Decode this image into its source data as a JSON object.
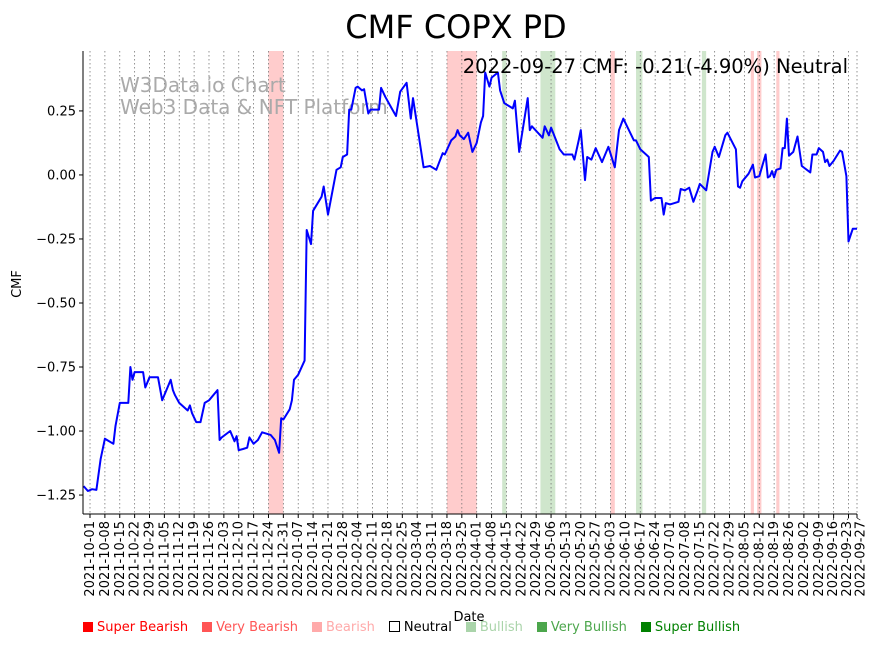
{
  "chart_data": {
    "type": "line",
    "title": "CMF COPX PD",
    "xlabel": "Date",
    "ylabel": "CMF",
    "annotation": "2022-09-27 CMF: -0.21(-4.90%) Neutral",
    "watermark": [
      "W3Data.io Chart",
      "Web3 Data & NFT Platform"
    ],
    "x_origin_date": "2021-10-01",
    "x_unit": "days since origin",
    "xlim": [
      -3.3,
      361
    ],
    "ylim": [
      -1.324,
      0.484
    ],
    "yticks": [
      0.25,
      0.0,
      -0.25,
      -0.5,
      -0.75,
      -1.0,
      -1.25
    ],
    "ytick_labels": [
      "0.25",
      "0.00",
      "−0.25",
      "−0.50",
      "−0.75",
      "−1.00",
      "−1.25"
    ],
    "xtick_labels": [
      "2021-10-01",
      "2021-10-08",
      "2021-10-15",
      "2021-10-22",
      "2021-10-29",
      "2021-11-05",
      "2021-11-12",
      "2021-11-19",
      "2021-11-26",
      "2021-12-03",
      "2021-12-10",
      "2021-12-17",
      "2021-12-24",
      "2021-12-31",
      "2022-01-07",
      "2022-01-14",
      "2022-01-21",
      "2022-01-28",
      "2022-02-04",
      "2022-02-11",
      "2022-02-18",
      "2022-02-25",
      "2022-03-04",
      "2022-03-11",
      "2022-03-18",
      "2022-03-25",
      "2022-04-01",
      "2022-04-08",
      "2022-04-15",
      "2022-04-22",
      "2022-04-29",
      "2022-05-06",
      "2022-05-13",
      "2022-05-20",
      "2022-05-27",
      "2022-06-03",
      "2022-06-10",
      "2022-06-17",
      "2022-06-24",
      "2022-07-01",
      "2022-07-08",
      "2022-07-15",
      "2022-07-22",
      "2022-07-29",
      "2022-08-05",
      "2022-08-12",
      "2022-08-19",
      "2022-08-26",
      "2022-09-02",
      "2022-09-09",
      "2022-09-16",
      "2022-09-23",
      "2022-09-27"
    ],
    "grid": "vertical dotted",
    "line_color": "#0000ff",
    "series": [
      {
        "name": "CMF",
        "days": [
          -3,
          -1,
          1,
          3,
          5,
          7,
          8,
          11,
          12,
          14,
          18,
          19,
          20,
          21,
          25,
          26,
          28,
          32,
          34,
          38,
          39,
          40,
          42,
          46,
          47,
          48,
          50,
          52,
          54,
          56,
          60,
          61,
          62,
          66,
          68,
          69,
          70,
          72,
          74,
          75,
          77,
          79,
          81,
          85,
          87,
          89,
          90,
          91,
          94,
          95,
          96,
          98,
          101,
          102,
          104,
          105,
          109,
          110,
          112,
          116,
          118,
          119,
          121,
          122,
          123,
          125,
          126,
          128,
          129,
          131,
          132,
          136,
          137,
          139,
          142,
          144,
          146,
          149,
          151,
          152,
          157,
          160,
          163,
          166,
          167,
          170,
          172,
          173,
          174,
          176,
          178,
          180,
          182,
          184,
          185,
          186,
          188,
          189,
          192,
          193,
          195,
          199,
          200,
          202,
          206,
          207,
          208,
          213,
          214,
          216,
          217,
          221,
          223,
          227,
          228,
          230,
          231,
          233,
          234,
          236,
          238,
          241,
          244,
          247,
          249,
          251,
          256,
          257,
          259,
          263,
          264,
          266,
          269,
          270,
          271,
          273,
          277,
          278,
          280,
          282,
          284,
          286,
          287,
          290,
          291,
          293,
          294,
          296,
          299,
          300,
          304,
          305,
          306,
          307,
          310,
          312,
          313,
          315,
          318,
          319,
          320,
          321,
          322,
          323,
          325,
          326,
          327,
          328,
          329,
          331,
          333,
          335,
          339,
          340,
          342,
          343,
          345,
          346,
          347,
          348,
          350,
          353,
          354,
          356,
          357,
          359,
          361
        ],
        "values": [
          -1.215,
          -1.234,
          -1.227,
          -1.23,
          -1.11,
          -1.03,
          -1.035,
          -1.05,
          -0.98,
          -0.89,
          -0.89,
          -0.75,
          -0.8,
          -0.77,
          -0.77,
          -0.83,
          -0.79,
          -0.79,
          -0.88,
          -0.8,
          -0.84,
          -0.86,
          -0.89,
          -0.92,
          -0.9,
          -0.93,
          -0.965,
          -0.965,
          -0.89,
          -0.88,
          -0.84,
          -1.035,
          -1.025,
          -1.0,
          -1.04,
          -1.02,
          -1.075,
          -1.07,
          -1.065,
          -1.025,
          -1.05,
          -1.035,
          -1.005,
          -1.015,
          -1.035,
          -1.085,
          -0.95,
          -0.955,
          -0.915,
          -0.88,
          -0.8,
          -0.78,
          -0.725,
          -0.215,
          -0.27,
          -0.14,
          -0.085,
          -0.045,
          -0.155,
          0.02,
          0.03,
          0.07,
          0.08,
          0.255,
          0.255,
          0.34,
          0.345,
          0.33,
          0.335,
          0.24,
          0.255,
          0.255,
          0.34,
          0.305,
          0.26,
          0.23,
          0.325,
          0.36,
          0.22,
          0.3,
          0.03,
          0.035,
          0.02,
          0.085,
          0.08,
          0.135,
          0.15,
          0.175,
          0.155,
          0.14,
          0.165,
          0.09,
          0.125,
          0.205,
          0.23,
          0.4,
          0.345,
          0.38,
          0.4,
          0.33,
          0.28,
          0.26,
          0.29,
          0.09,
          0.3,
          0.175,
          0.19,
          0.145,
          0.19,
          0.155,
          0.185,
          0.1,
          0.08,
          0.08,
          0.06,
          0.135,
          0.175,
          -0.02,
          0.07,
          0.06,
          0.105,
          0.05,
          0.11,
          0.03,
          0.175,
          0.22,
          0.135,
          0.135,
          0.1,
          0.07,
          -0.1,
          -0.09,
          -0.09,
          -0.155,
          -0.11,
          -0.115,
          -0.105,
          -0.055,
          -0.06,
          -0.05,
          -0.105,
          -0.06,
          -0.035,
          -0.06,
          -0.01,
          0.09,
          0.11,
          0.07,
          0.155,
          0.165,
          0.1,
          -0.045,
          -0.05,
          -0.025,
          0.005,
          0.04,
          -0.01,
          -0.005,
          0.08,
          -0.01,
          -0.005,
          0.015,
          -0.01,
          0.02,
          0.025,
          0.105,
          0.105,
          0.22,
          0.075,
          0.09,
          0.15,
          0.035,
          0.01,
          0.08,
          0.08,
          0.105,
          0.09,
          0.05,
          0.06,
          0.035,
          0.055,
          0.095,
          0.09,
          -0.005,
          -0.26,
          -0.21,
          -0.21
        ]
      }
    ],
    "regions": [
      {
        "type": "Very Bearish",
        "start": 84,
        "end": 91
      },
      {
        "type": "Very Bearish",
        "start": 168,
        "end": 182
      },
      {
        "type": "Very Bullish",
        "start": 194,
        "end": 196
      },
      {
        "type": "Very Bullish",
        "start": 212,
        "end": 219
      },
      {
        "type": "Very Bearish",
        "start": 245,
        "end": 247
      },
      {
        "type": "Very Bullish",
        "start": 257,
        "end": 260
      },
      {
        "type": "Very Bullish",
        "start": 288,
        "end": 290
      },
      {
        "type": "Very Bearish",
        "start": 311,
        "end": 312.5
      },
      {
        "type": "Very Bearish",
        "start": 314,
        "end": 316
      },
      {
        "type": "Very Bearish",
        "start": 323,
        "end": 324.5
      }
    ],
    "region_colors": {
      "Very Bearish": "#ffcccc",
      "Very Bullish": "#cfe6cc"
    },
    "legend": [
      {
        "label": "Super Bearish",
        "color": "#ff0000",
        "text_color": "#ff0000"
      },
      {
        "label": "Very Bearish",
        "color": "#ff5555",
        "text_color": "#ff5555"
      },
      {
        "label": "Bearish",
        "color": "#ffaaaa",
        "text_color": "#ffaaaa"
      },
      {
        "label": "Neutral",
        "color": "#ffffff",
        "text_color": "#000000"
      },
      {
        "label": "Bullish",
        "color": "#aad4aa",
        "text_color": "#aad4aa"
      },
      {
        "label": "Very Bullish",
        "color": "#4ca64c",
        "text_color": "#4ca64c"
      },
      {
        "label": "Super Bullish",
        "color": "#008000",
        "text_color": "#008000"
      }
    ]
  }
}
